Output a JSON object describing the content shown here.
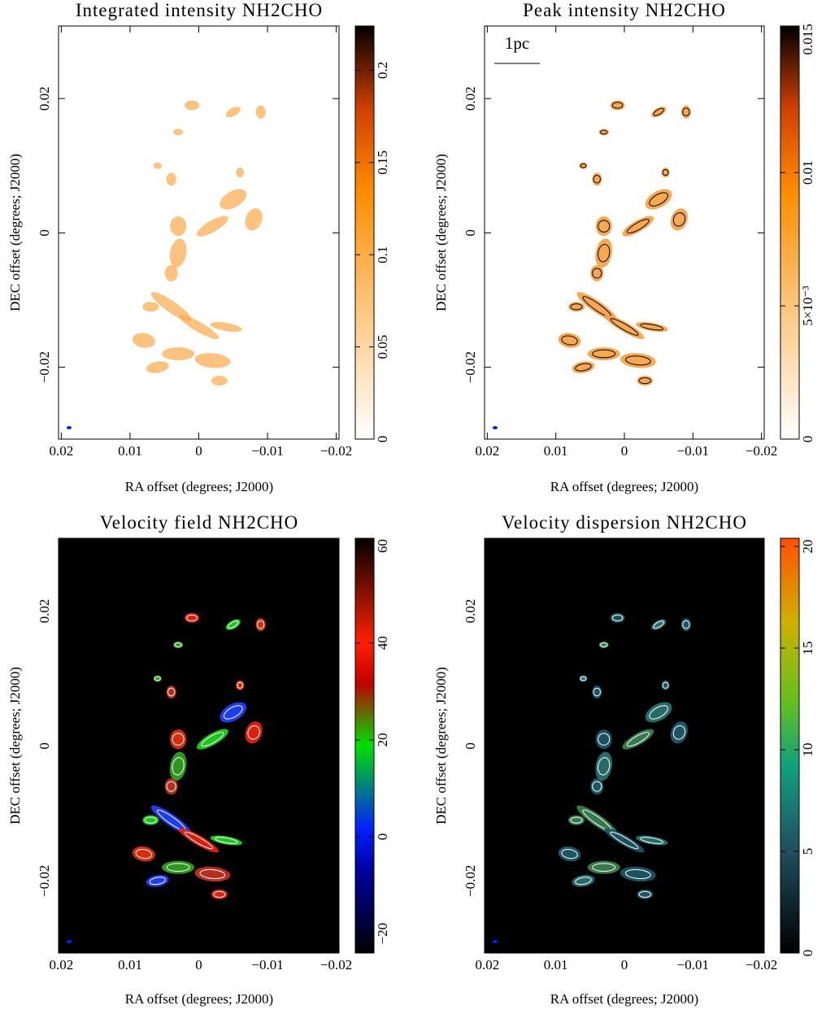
{
  "panels": [
    {
      "title": "Integrated intensity NH2CHO",
      "xlabel": "RA offset (degrees; J2000)",
      "ylabel": "DEC offset (degrees; J2000)",
      "xlim": [
        0.0204,
        -0.0204
      ],
      "ylim": [
        -0.0307,
        0.0308
      ],
      "xticks": [
        0.02,
        0.01,
        0,
        {
          "value": -0.01,
          "label": "−0.01"
        },
        {
          "value": -0.02,
          "label": "−0.02"
        }
      ],
      "yticks": [
        0.02,
        0,
        {
          "value": -0.02,
          "label": "−0.02"
        }
      ],
      "clim": [
        0,
        0.224
      ],
      "cticks": [
        0,
        0.05,
        0.1,
        0.15,
        0.2
      ]
    },
    {
      "title": "Peak intensity NH2CHO",
      "xlabel": "RA offset (degrees; J2000)",
      "ylabel": "DEC offset (degrees; J2000)",
      "scale_bar": "1pc",
      "xlim": [
        0.0204,
        -0.0204
      ],
      "ylim": [
        -0.0307,
        0.0308
      ],
      "xticks": [
        0.02,
        0.01,
        0,
        {
          "value": -0.01,
          "label": "−0.01"
        },
        {
          "value": -0.02,
          "label": "−0.02"
        }
      ],
      "yticks": [
        0.02,
        0,
        {
          "value": -0.02,
          "label": "−0.02"
        }
      ],
      "clim": [
        0,
        0.0155
      ],
      "cticks": [
        0,
        {
          "value": 0.005,
          "label": "5×10⁻³"
        },
        0.01,
        0.015
      ]
    },
    {
      "title": "Velocity field NH2CHO",
      "xlabel": "RA offset (degrees; J2000)",
      "ylabel": "DEC offset (degrees; J2000)",
      "xlim": [
        0.0204,
        -0.0204
      ],
      "ylim": [
        -0.0307,
        0.0308
      ],
      "xticks": [
        0.02,
        0.01,
        0,
        {
          "value": -0.01,
          "label": "−0.01"
        },
        {
          "value": -0.02,
          "label": "−0.02"
        }
      ],
      "yticks": [
        0.02,
        0,
        {
          "value": -0.02,
          "label": "−0.02"
        }
      ],
      "clim": [
        -24,
        61.6
      ],
      "cticks": [
        {
          "value": -20,
          "label": "−20"
        },
        0,
        20,
        40,
        60
      ]
    },
    {
      "title": "Velocity dispersion NH2CHO",
      "xlabel": "RA offset (degrees; J2000)",
      "ylabel": "DEC offset (degrees; J2000)",
      "xlim": [
        0.0204,
        -0.0204
      ],
      "ylim": [
        -0.0307,
        0.0308
      ],
      "xticks": [
        0.02,
        0.01,
        0,
        {
          "value": -0.01,
          "label": "−0.01"
        },
        {
          "value": -0.02,
          "label": "−0.02"
        }
      ],
      "yticks": [
        0.02,
        0,
        {
          "value": -0.02,
          "label": "−0.02"
        }
      ],
      "clim": [
        0,
        20.4
      ],
      "cticks": [
        0,
        5,
        10,
        15,
        20
      ]
    }
  ]
}
